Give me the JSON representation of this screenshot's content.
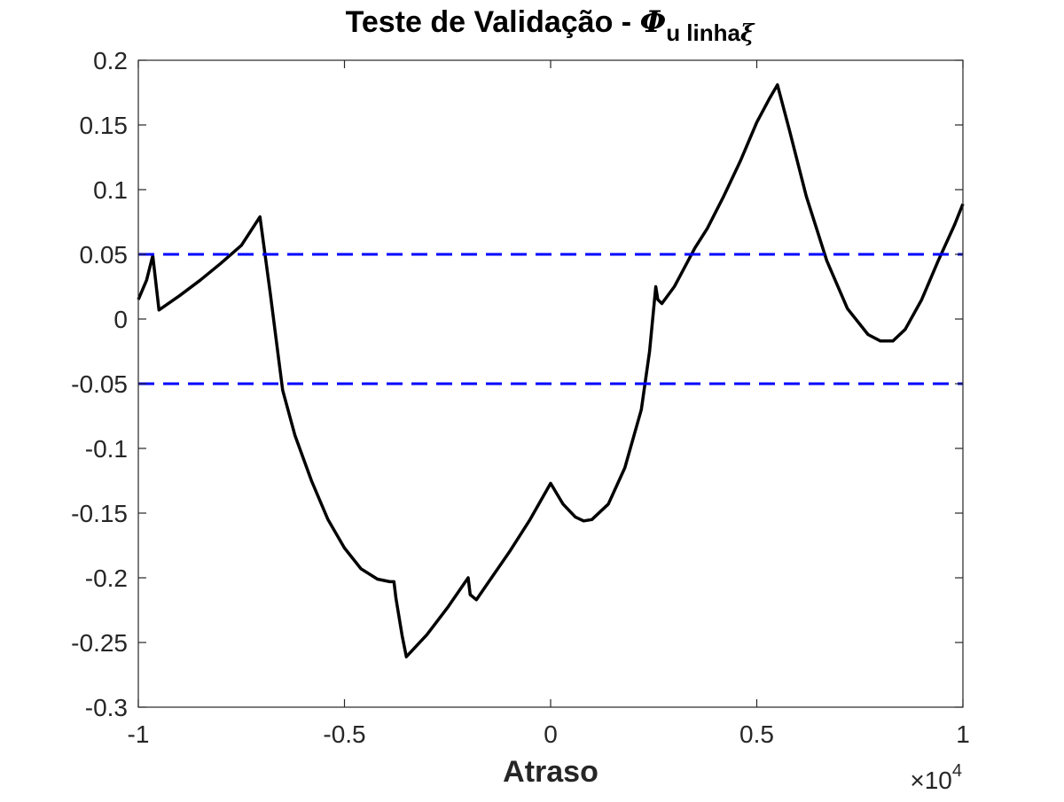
{
  "chart_data": {
    "type": "line",
    "title": {
      "main": "Teste de Validação - ",
      "symbol": "Φ",
      "subscript": "u linha",
      "subscript_symbol": "ξ"
    },
    "xlabel": "Atraso",
    "ylabel": "",
    "x_multiplier": {
      "prefix": "×10",
      "exponent": "4"
    },
    "xlim": [
      -10000,
      10000
    ],
    "ylim": [
      -0.3,
      0.2
    ],
    "x_ticks": [
      -10000,
      -5000,
      0,
      5000,
      10000
    ],
    "x_tick_labels": [
      "-1",
      "-0.5",
      "0",
      "0.5",
      "1"
    ],
    "y_ticks": [
      -0.3,
      -0.25,
      -0.2,
      -0.15,
      -0.1,
      -0.05,
      0,
      0.05,
      0.1,
      0.15,
      0.2
    ],
    "y_tick_labels": [
      "-0.3",
      "-0.25",
      "-0.2",
      "-0.15",
      "-0.1",
      "-0.05",
      "0",
      "0.05",
      "0.1",
      "0.15",
      "0.2"
    ],
    "grid": false,
    "box": true,
    "series": [
      {
        "color": "#000000",
        "style": "solid",
        "x": [
          -10000,
          -9800,
          -9650,
          -9500,
          -9000,
          -8500,
          -8000,
          -7500,
          -7050,
          -6800,
          -6600,
          -6500,
          -6200,
          -5800,
          -5400,
          -5000,
          -4600,
          -4200,
          -3900,
          -3800,
          -3750,
          -3600,
          -3500,
          -3000,
          -2500,
          -2000,
          -1950,
          -1800,
          -1500,
          -1000,
          -500,
          0,
          300,
          600,
          800,
          1000,
          1400,
          1800,
          2200,
          2400,
          2550,
          2600,
          2700,
          3000,
          3500,
          3800,
          4200,
          4600,
          5000,
          5300,
          5500,
          5800,
          6200,
          6700,
          7200,
          7700,
          8000,
          8300,
          8600,
          9000,
          9400,
          9800,
          10000
        ],
        "y": [
          0.015,
          0.03,
          0.049,
          0.007,
          0.018,
          0.03,
          0.043,
          0.057,
          0.079,
          0.02,
          -0.03,
          -0.055,
          -0.09,
          -0.125,
          -0.155,
          -0.177,
          -0.193,
          -0.201,
          -0.203,
          -0.203,
          -0.216,
          -0.245,
          -0.261,
          -0.244,
          -0.223,
          -0.2,
          -0.213,
          -0.217,
          -0.203,
          -0.18,
          -0.155,
          -0.127,
          -0.143,
          -0.153,
          -0.156,
          -0.155,
          -0.143,
          -0.115,
          -0.07,
          -0.025,
          0.025,
          0.015,
          0.012,
          0.025,
          0.055,
          0.07,
          0.095,
          0.122,
          0.152,
          0.17,
          0.181,
          0.145,
          0.095,
          0.045,
          0.008,
          -0.012,
          -0.017,
          -0.017,
          -0.008,
          0.015,
          0.045,
          0.073,
          0.089
        ]
      },
      {
        "color": "#0000ff",
        "style": "dashed",
        "x": [
          -10000,
          10000
        ],
        "y": [
          0.05,
          0.05
        ]
      },
      {
        "color": "#0000ff",
        "style": "dashed",
        "x": [
          -10000,
          10000
        ],
        "y": [
          -0.05,
          -0.05
        ]
      }
    ]
  }
}
